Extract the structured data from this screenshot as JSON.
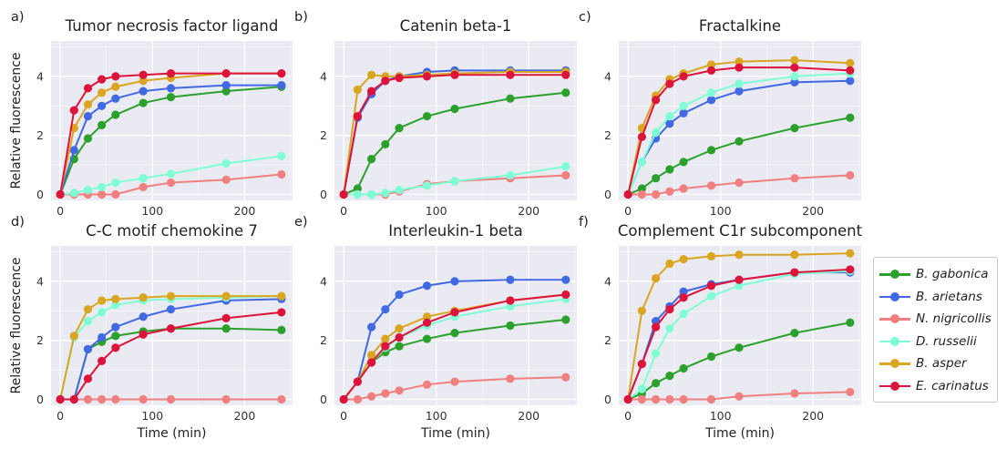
{
  "figure": {
    "ylabel": "Relative fluorescence",
    "xlabel": "Time (min)"
  },
  "legend": [
    {
      "label": "B. gabonica",
      "color": "#2ca02c"
    },
    {
      "label": "B. arietans",
      "color": "#4169e1"
    },
    {
      "label": "N. nigricollis",
      "color": "#f08080"
    },
    {
      "label": "D. russelii",
      "color": "#7fffd4"
    },
    {
      "label": "B. asper",
      "color": "#daa520"
    },
    {
      "label": "E. carinatus",
      "color": "#dc143c"
    }
  ],
  "chart_data": [
    {
      "panel": "a)",
      "title": "Tumor necrosis factor ligand",
      "type": "line",
      "x": [
        0,
        15,
        30,
        45,
        60,
        90,
        120,
        180,
        240
      ],
      "xlim": [
        -10,
        252
      ],
      "ylim": [
        -0.2,
        5.2
      ],
      "xticks": [
        0,
        100,
        200
      ],
      "yticks": [
        0,
        2,
        4
      ],
      "series": [
        {
          "name": "B. gabonica",
          "values": [
            0,
            1.2,
            1.9,
            2.35,
            2.7,
            3.1,
            3.3,
            3.5,
            3.65
          ]
        },
        {
          "name": "B. arietans",
          "values": [
            0,
            1.5,
            2.65,
            3.0,
            3.25,
            3.5,
            3.6,
            3.7,
            3.7
          ]
        },
        {
          "name": "N. nigricollis",
          "values": [
            0,
            0,
            0,
            0,
            0,
            0.25,
            0.4,
            0.5,
            0.68
          ]
        },
        {
          "name": "D. russelii",
          "values": [
            0,
            0.05,
            0.15,
            0.25,
            0.4,
            0.55,
            0.7,
            1.05,
            1.3
          ]
        },
        {
          "name": "B. asper",
          "values": [
            0,
            2.25,
            3.05,
            3.45,
            3.65,
            3.85,
            3.95,
            4.1,
            4.1
          ]
        },
        {
          "name": "E. carinatus",
          "values": [
            0,
            2.85,
            3.6,
            3.9,
            4.0,
            4.05,
            4.1,
            4.1,
            4.1
          ]
        }
      ]
    },
    {
      "panel": "b)",
      "title": "Catenin beta-1",
      "type": "line",
      "x": [
        0,
        15,
        30,
        45,
        60,
        90,
        120,
        180,
        240
      ],
      "xlim": [
        -10,
        252
      ],
      "ylim": [
        -0.2,
        5.2
      ],
      "xticks": [
        0,
        100,
        200
      ],
      "yticks": [
        0,
        2,
        4
      ],
      "series": [
        {
          "name": "B. gabonica",
          "values": [
            0,
            0.2,
            1.2,
            1.7,
            2.25,
            2.65,
            2.9,
            3.25,
            3.45
          ]
        },
        {
          "name": "B. arietans",
          "values": [
            0,
            2.6,
            3.4,
            3.85,
            4.0,
            4.15,
            4.2,
            4.2,
            4.2
          ]
        },
        {
          "name": "N. nigricollis",
          "values": [
            0,
            0,
            0,
            0,
            0.1,
            0.35,
            0.45,
            0.55,
            0.65
          ]
        },
        {
          "name": "D. russelii",
          "values": [
            0,
            0,
            0,
            0.05,
            0.15,
            0.3,
            0.45,
            0.65,
            0.95
          ]
        },
        {
          "name": "B. asper",
          "values": [
            0,
            3.55,
            4.05,
            4.0,
            4.0,
            4.05,
            4.1,
            4.15,
            4.15
          ]
        },
        {
          "name": "E. carinatus",
          "values": [
            0,
            2.65,
            3.5,
            3.85,
            3.95,
            4.0,
            4.05,
            4.05,
            4.05
          ]
        }
      ]
    },
    {
      "panel": "c)",
      "title": "Fractalkine",
      "type": "line",
      "x": [
        0,
        15,
        30,
        45,
        60,
        90,
        120,
        180,
        240
      ],
      "xlim": [
        -10,
        252
      ],
      "ylim": [
        -0.2,
        5.2
      ],
      "xticks": [
        0,
        100,
        200
      ],
      "yticks": [
        0,
        2,
        4
      ],
      "series": [
        {
          "name": "B. gabonica",
          "values": [
            0,
            0.2,
            0.55,
            0.85,
            1.1,
            1.5,
            1.8,
            2.25,
            2.6
          ]
        },
        {
          "name": "B. arietans",
          "values": [
            0,
            1.1,
            1.9,
            2.4,
            2.75,
            3.2,
            3.5,
            3.8,
            3.85
          ]
        },
        {
          "name": "N. nigricollis",
          "values": [
            0,
            0,
            0,
            0.1,
            0.2,
            0.3,
            0.4,
            0.55,
            0.65
          ]
        },
        {
          "name": "D. russelii",
          "values": [
            0,
            1.1,
            2.1,
            2.65,
            3.0,
            3.45,
            3.75,
            4.0,
            4.1
          ]
        },
        {
          "name": "B. asper",
          "values": [
            0,
            2.25,
            3.35,
            3.9,
            4.1,
            4.4,
            4.5,
            4.55,
            4.45
          ]
        },
        {
          "name": "E. carinatus",
          "values": [
            0,
            1.95,
            3.2,
            3.75,
            4.0,
            4.2,
            4.3,
            4.3,
            4.2
          ]
        }
      ]
    },
    {
      "panel": "d)",
      "title": "C-C motif chemokine 7",
      "type": "line",
      "x": [
        0,
        15,
        30,
        45,
        60,
        90,
        120,
        180,
        240
      ],
      "xlim": [
        -10,
        252
      ],
      "ylim": [
        -0.2,
        5.2
      ],
      "xticks": [
        0,
        100,
        200
      ],
      "yticks": [
        0,
        2,
        4
      ],
      "series": [
        {
          "name": "B. gabonica",
          "values": [
            0,
            0,
            1.7,
            1.95,
            2.15,
            2.3,
            2.4,
            2.4,
            2.35
          ]
        },
        {
          "name": "B. arietans",
          "values": [
            0,
            0,
            1.7,
            2.1,
            2.45,
            2.8,
            3.05,
            3.35,
            3.4
          ]
        },
        {
          "name": "N. nigricollis",
          "values": [
            0,
            0,
            0,
            0,
            0,
            0,
            0,
            0,
            0
          ]
        },
        {
          "name": "D. russelii",
          "values": [
            0,
            2.1,
            2.65,
            2.95,
            3.2,
            3.35,
            3.4,
            3.45,
            3.5
          ]
        },
        {
          "name": "B. asper",
          "values": [
            0,
            2.15,
            3.05,
            3.35,
            3.4,
            3.45,
            3.5,
            3.5,
            3.5
          ]
        },
        {
          "name": "E. carinatus",
          "values": [
            0,
            0,
            0.7,
            1.3,
            1.75,
            2.2,
            2.4,
            2.75,
            2.95
          ]
        }
      ]
    },
    {
      "panel": "e)",
      "title": "Interleukin-1 beta",
      "type": "line",
      "x": [
        0,
        15,
        30,
        45,
        60,
        90,
        120,
        180,
        240
      ],
      "xlim": [
        -10,
        252
      ],
      "ylim": [
        -0.2,
        5.2
      ],
      "xticks": [
        0,
        100,
        200
      ],
      "yticks": [
        0,
        2,
        4
      ],
      "series": [
        {
          "name": "B. gabonica",
          "values": [
            0,
            0.6,
            1.25,
            1.6,
            1.8,
            2.05,
            2.25,
            2.5,
            2.7
          ]
        },
        {
          "name": "B. arietans",
          "values": [
            0,
            0.6,
            2.45,
            3.05,
            3.55,
            3.85,
            4.0,
            4.05,
            4.05
          ]
        },
        {
          "name": "N. nigricollis",
          "values": [
            0,
            0,
            0.1,
            0.2,
            0.3,
            0.5,
            0.6,
            0.7,
            0.75
          ]
        },
        {
          "name": "D. russelii",
          "values": [
            0,
            0.6,
            1.25,
            1.75,
            2.1,
            2.5,
            2.8,
            3.15,
            3.4
          ]
        },
        {
          "name": "B. asper",
          "values": [
            0,
            0.6,
            1.5,
            2.05,
            2.4,
            2.8,
            3.0,
            3.35,
            3.55
          ]
        },
        {
          "name": "E. carinatus",
          "values": [
            0,
            0.6,
            1.25,
            1.8,
            2.1,
            2.6,
            2.95,
            3.35,
            3.55
          ]
        }
      ]
    },
    {
      "panel": "f)",
      "title": "Complement C1r subcomponent",
      "type": "line",
      "x": [
        0,
        15,
        30,
        45,
        60,
        90,
        120,
        180,
        240
      ],
      "xlim": [
        -10,
        252
      ],
      "ylim": [
        -0.2,
        5.2
      ],
      "xticks": [
        0,
        100,
        200
      ],
      "yticks": [
        0,
        2,
        4
      ],
      "series": [
        {
          "name": "B. gabonica",
          "values": [
            0,
            0.2,
            0.55,
            0.8,
            1.05,
            1.45,
            1.75,
            2.25,
            2.6
          ]
        },
        {
          "name": "B. arietans",
          "values": [
            0,
            1.2,
            2.65,
            3.15,
            3.65,
            3.9,
            4.05,
            4.3,
            4.3
          ]
        },
        {
          "name": "N. nigricollis",
          "values": [
            0,
            0,
            0,
            0,
            0,
            0,
            0.1,
            0.2,
            0.25
          ]
        },
        {
          "name": "D. russelii",
          "values": [
            0,
            0.35,
            1.55,
            2.4,
            2.9,
            3.5,
            3.85,
            4.25,
            4.35
          ]
        },
        {
          "name": "B. asper",
          "values": [
            0,
            3.0,
            4.1,
            4.6,
            4.75,
            4.85,
            4.9,
            4.9,
            4.95
          ]
        },
        {
          "name": "E. carinatus",
          "values": [
            0,
            1.2,
            2.45,
            3.05,
            3.45,
            3.85,
            4.05,
            4.3,
            4.4
          ]
        }
      ]
    }
  ]
}
